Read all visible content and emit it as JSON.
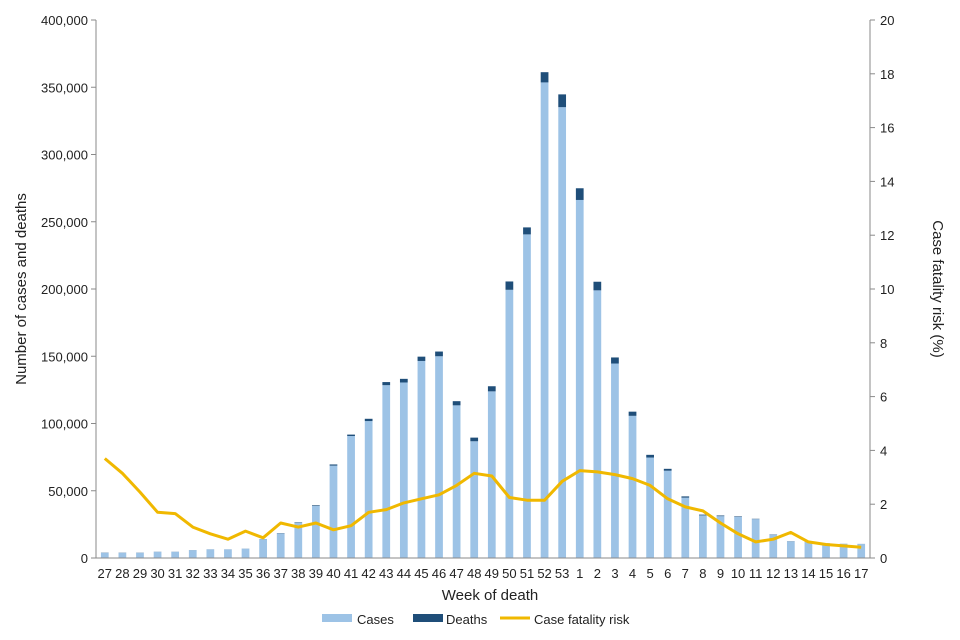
{
  "chart_data": {
    "type": "bar",
    "stacked": true,
    "xlabel": "Week of death",
    "ylabel": "Number of cases and deaths",
    "y2label": "Case fatality risk (%)",
    "ylim": [
      0,
      400000
    ],
    "y2lim": [
      0,
      20
    ],
    "yticks": [
      "0",
      "50,000",
      "100,000",
      "150,000",
      "200,000",
      "250,000",
      "300,000",
      "350,000",
      "400,000"
    ],
    "y2ticks": [
      "0",
      "2",
      "4",
      "6",
      "8",
      "10",
      "12",
      "14",
      "16",
      "18",
      "20"
    ],
    "categories": [
      "27",
      "28",
      "29",
      "30",
      "31",
      "32",
      "33",
      "34",
      "35",
      "36",
      "37",
      "38",
      "39",
      "40",
      "41",
      "42",
      "43",
      "44",
      "45",
      "46",
      "47",
      "48",
      "49",
      "50",
      "51",
      "52",
      "53",
      "1",
      "2",
      "3",
      "4",
      "5",
      "6",
      "7",
      "8",
      "9",
      "10",
      "11",
      "12",
      "13",
      "14",
      "15",
      "16",
      "17"
    ],
    "series": [
      {
        "name": "Cases",
        "kind": "bar",
        "color": "#9dc3e6",
        "values": [
          3900,
          3900,
          3900,
          4600,
          4600,
          5800,
          6400,
          6400,
          6900,
          14000,
          18200,
          26300,
          38700,
          68700,
          90700,
          101800,
          128500,
          130500,
          146500,
          150000,
          113500,
          86800,
          123900,
          199400,
          240600,
          353600,
          335200,
          266200,
          199000,
          144600,
          105700,
          74700,
          64900,
          44900,
          31700,
          31100,
          30600,
          28900,
          17400,
          12300,
          12500,
          10800,
          10500,
          10400
        ]
      },
      {
        "name": "Deaths",
        "kind": "bar",
        "color": "#1f4e79",
        "values": [
          140,
          120,
          110,
          80,
          75,
          70,
          55,
          45,
          65,
          100,
          230,
          300,
          490,
          850,
          1050,
          1700,
          2300,
          2700,
          3200,
          3500,
          3100,
          2700,
          3800,
          6200,
          5200,
          7600,
          9500,
          8700,
          6400,
          4500,
          3100,
          2000,
          1400,
          900,
          550,
          500,
          380,
          250,
          180,
          140,
          120,
          90,
          70,
          60
        ]
      },
      {
        "name": "Case fatality risk",
        "kind": "line",
        "color": "#f0b800",
        "values": [
          3.7,
          3.15,
          2.45,
          1.7,
          1.65,
          1.15,
          0.9,
          0.7,
          1.0,
          0.75,
          1.3,
          1.15,
          1.3,
          1.05,
          1.2,
          1.7,
          1.8,
          2.05,
          2.2,
          2.35,
          2.7,
          3.15,
          3.05,
          2.25,
          2.15,
          2.15,
          2.85,
          3.25,
          3.2,
          3.1,
          2.95,
          2.7,
          2.2,
          1.9,
          1.75,
          1.3,
          0.9,
          0.6,
          0.7,
          0.95,
          0.6,
          0.5,
          0.45,
          0.4
        ]
      }
    ],
    "legend": [
      "Cases",
      "Deaths",
      "Case fatality risk"
    ],
    "legend_position": "bottom"
  }
}
